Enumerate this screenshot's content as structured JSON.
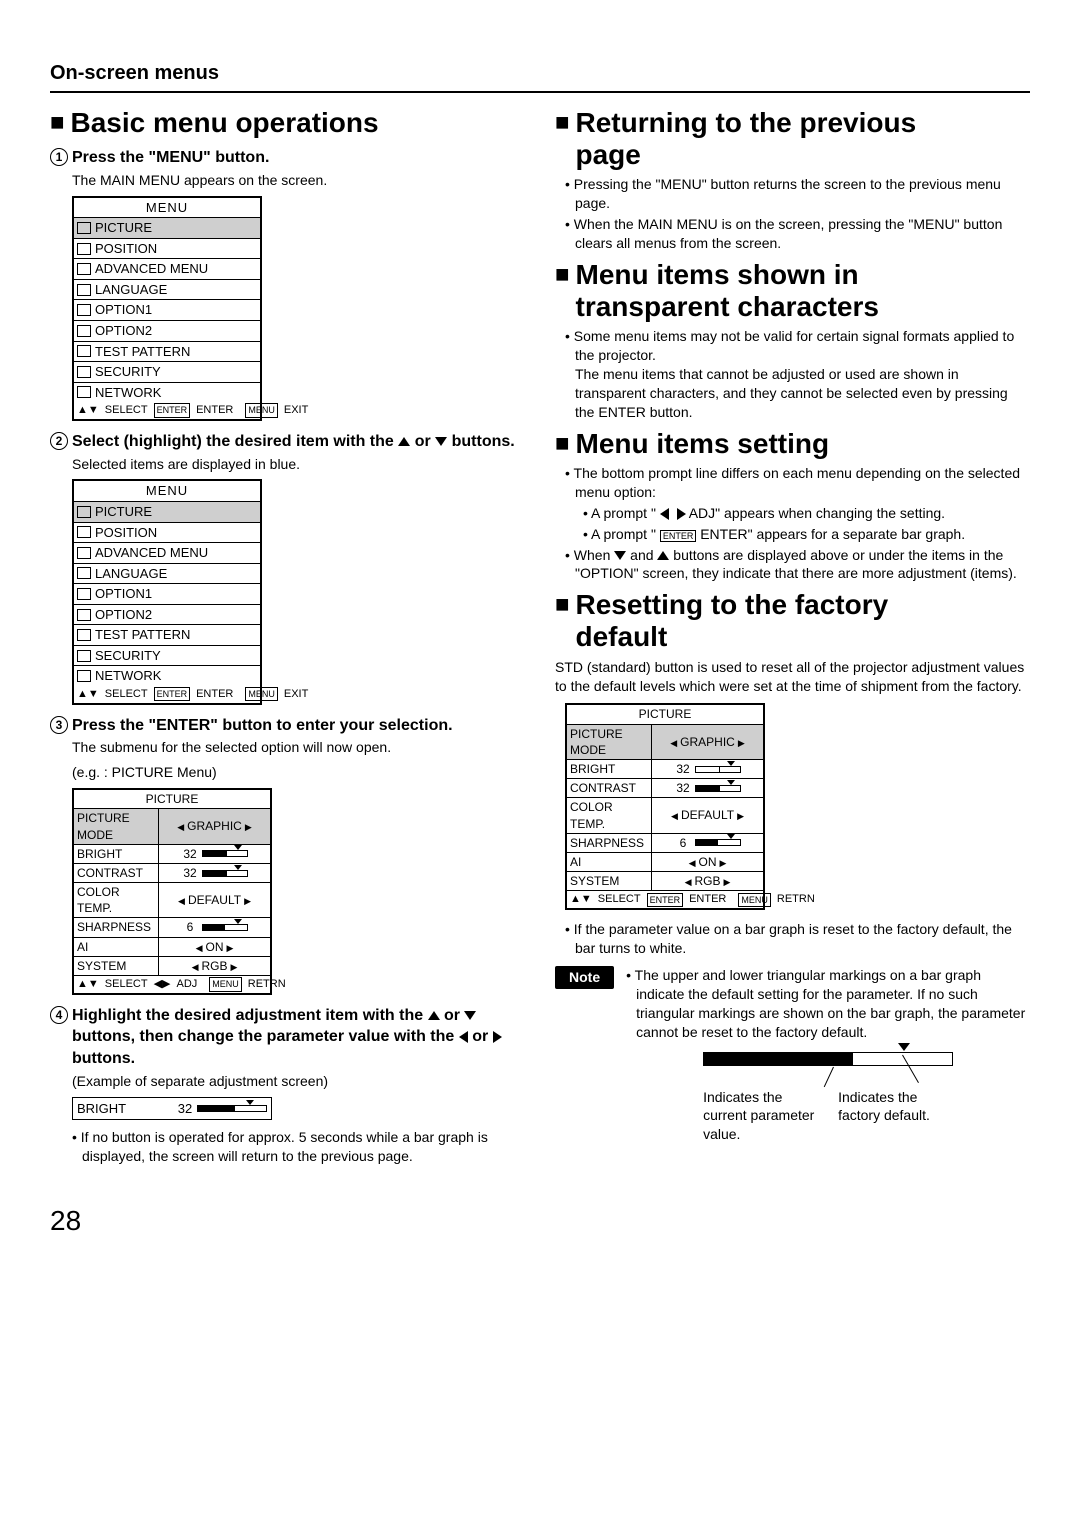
{
  "header": "On-screen menus",
  "page_number": "28",
  "left": {
    "title": "Basic menu operations",
    "step1": {
      "head": "Press the \"MENU\" button.",
      "body": "The MAIN MENU appears on the screen.",
      "menu_title": "MENU",
      "items": [
        "PICTURE",
        "POSITION",
        "ADVANCED MENU",
        "LANGUAGE",
        "OPTION1",
        "OPTION2",
        "TEST PATTERN",
        "SECURITY",
        "NETWORK"
      ],
      "selected_index": 0,
      "prompt_select": "SELECT",
      "prompt_enter": "ENTER",
      "prompt_exit": "EXIT",
      "prompt_enter_box": "ENTER",
      "prompt_menu_box": "MENU"
    },
    "step2": {
      "head_a": "Select (highlight) the desired item with the ",
      "head_b": " or ",
      "head_c": " buttons.",
      "body": "Selected items are displayed in blue.",
      "menu_title": "MENU",
      "items": [
        "PICTURE",
        "POSITION",
        "ADVANCED MENU",
        "LANGUAGE",
        "OPTION1",
        "OPTION2",
        "TEST PATTERN",
        "SECURITY",
        "NETWORK"
      ],
      "selected_index": 0,
      "prompt_select": "SELECT",
      "prompt_enter": "ENTER",
      "prompt_exit": "EXIT",
      "prompt_enter_box": "ENTER",
      "prompt_menu_box": "MENU"
    },
    "step3": {
      "head": "Press the \"ENTER\" button to enter your selection.",
      "body1": "The submenu for the selected option will now open.",
      "body2": "(e.g. : PICTURE Menu)",
      "adj_title": "PICTURE",
      "rows": [
        {
          "label": "PICTURE MODE",
          "type": "enum",
          "value": "GRAPHIC",
          "selected": true
        },
        {
          "label": "BRIGHT",
          "type": "bar",
          "value": "32",
          "fill": 0.55
        },
        {
          "label": "CONTRAST",
          "type": "bar",
          "value": "32",
          "fill": 0.55
        },
        {
          "label": "COLOR TEMP.",
          "type": "enum",
          "value": "DEFAULT"
        },
        {
          "label": "SHARPNESS",
          "type": "bar",
          "value": "6",
          "fill": 0.5
        },
        {
          "label": "AI",
          "type": "enum",
          "value": "ON"
        },
        {
          "label": "SYSTEM",
          "type": "enum",
          "value": "RGB"
        }
      ],
      "prompt_select": "SELECT",
      "prompt_adj": "ADJ",
      "prompt_retrn": "RETRN",
      "prompt_menu_box": "MENU"
    },
    "step4": {
      "head_a": "Highlight the desired adjustment item with the ",
      "head_b": " or ",
      "head_c": " buttons, then change the parameter value with the ",
      "head_d": " or ",
      "head_e": " buttons.",
      "body": "(Example of separate adjustment screen)",
      "bar_label": "BRIGHT",
      "bar_value": "32",
      "bar_fill": 0.55,
      "note": "If no button is operated for approx. 5 seconds while a bar graph is displayed, the screen will return to the previous page."
    }
  },
  "right": {
    "sec1": {
      "title_a": "Returning to the previous",
      "title_b": "page",
      "bul1": "Pressing the \"MENU\" button returns the screen to the previous menu page.",
      "bul2": "When the MAIN MENU is on the screen, pressing the \"MENU\" button clears all menus from the screen."
    },
    "sec2": {
      "title_a": "Menu items shown in",
      "title_b": "transparent characters",
      "bul1": "Some menu items may not be valid for certain signal formats applied to the projector.",
      "bul1b": "The menu items that cannot be adjusted or used are shown in transparent characters, and they cannot be selected even by pressing the ENTER button."
    },
    "sec3": {
      "title": "Menu items setting",
      "bul1": "The bottom prompt line differs on each menu depending on the selected menu option:",
      "sub1_a": "A prompt \" ",
      "sub1_b": " ADJ\" appears when changing the setting.",
      "sub2_a": "A prompt \" ",
      "sub2_enter": "ENTER",
      "sub2_b": " ENTER\" appears for a separate bar graph.",
      "bul2_a": "When ",
      "bul2_b": " and ",
      "bul2_c": " buttons are displayed above or under the items in the \"OPTION\" screen, they indicate that there are more adjustment (items)."
    },
    "sec4": {
      "title_a": "Resetting to the factory",
      "title_b": "default",
      "para": "STD (standard) button is used to reset all of the projector adjustment values to the default levels which were set at the time of shipment from the factory.",
      "adj_title": "PICTURE",
      "rows": [
        {
          "label": "PICTURE MODE",
          "type": "enum",
          "value": "GRAPHIC",
          "selected": true
        },
        {
          "label": "BRIGHT",
          "type": "bar",
          "value": "32",
          "fill": 0.55,
          "white": true
        },
        {
          "label": "CONTRAST",
          "type": "bar",
          "value": "32",
          "fill": 0.55
        },
        {
          "label": "COLOR TEMP.",
          "type": "enum",
          "value": "DEFAULT"
        },
        {
          "label": "SHARPNESS",
          "type": "bar",
          "value": "6",
          "fill": 0.5
        },
        {
          "label": "AI",
          "type": "enum",
          "value": "ON"
        },
        {
          "label": "SYSTEM",
          "type": "enum",
          "value": "RGB"
        }
      ],
      "prompt_select": "SELECT",
      "prompt_enter": "ENTER",
      "prompt_retrn": "RETRN",
      "prompt_enter_box": "ENTER",
      "prompt_menu_box": "MENU",
      "bul": "If the parameter value on a bar graph is reset to the factory default, the bar turns to white.",
      "note_label": "Note",
      "note_text": "The upper and lower triangular markings on a bar graph indicate the default setting for the parameter. If no such triangular markings are shown on the bar graph, the parameter cannot be reset to the factory default.",
      "diag_a": "Indicates the current parameter value.",
      "diag_b": "Indicates the factory default."
    }
  }
}
